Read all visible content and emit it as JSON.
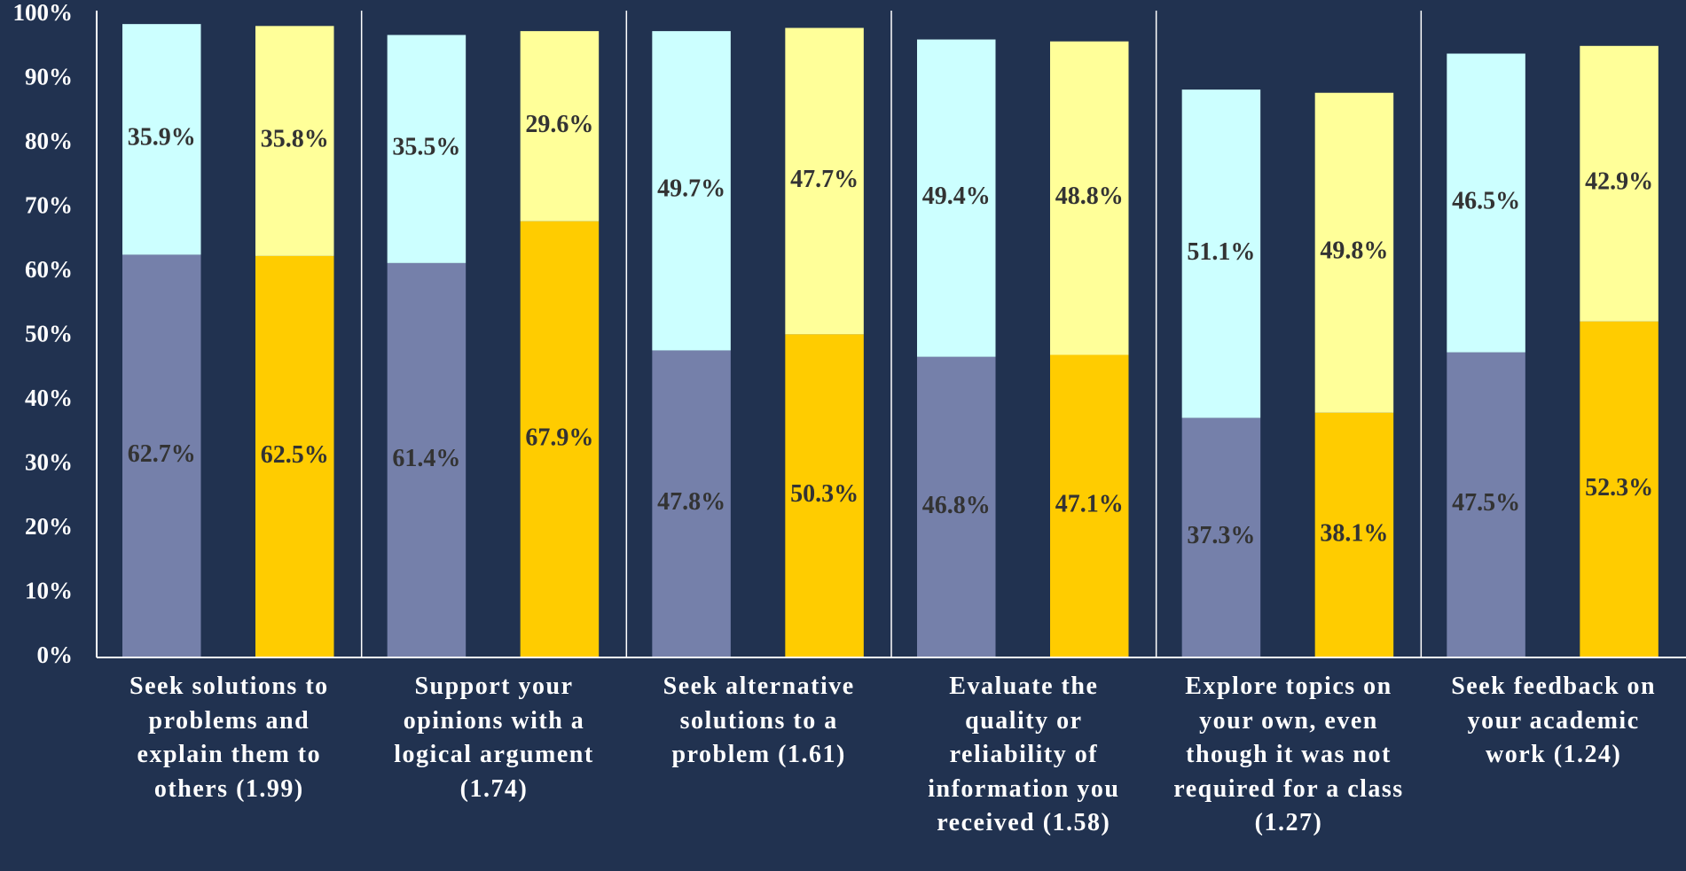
{
  "chart_data": {
    "type": "stacked_bar",
    "categories": [
      "Seek solutions to problems and explain them to others (1.99)",
      "Support your opinions with a logical argument (1.74)",
      "Seek alternative solutions to a problem (1.61)",
      "Evaluate the quality or reliability of information you received (1.58)",
      "Explore topics on your own, even though it was not required for a class (1.27)",
      "Seek feedback on your academic work (1.24)"
    ],
    "series": [
      {
        "color": "#7580aa",
        "stack": 0,
        "values": [
          62.7,
          61.4,
          47.8,
          46.8,
          37.3,
          47.5
        ],
        "value_labels": [
          "62.7%",
          "61.4%",
          "47.8%",
          "46.8%",
          "37.3%",
          "47.5%"
        ]
      },
      {
        "color": "#ccffff",
        "stack": 0,
        "values": [
          35.9,
          35.5,
          49.7,
          49.4,
          51.1,
          46.5
        ],
        "value_labels": [
          "35.9%",
          "35.5%",
          "49.7%",
          "49.4%",
          "51.1%",
          "46.5%"
        ]
      },
      {
        "color": "#ffcc00",
        "stack": 1,
        "values": [
          62.5,
          67.9,
          50.3,
          47.1,
          38.1,
          52.3
        ],
        "value_labels": [
          "62.5%",
          "67.9%",
          "50.3%",
          "47.1%",
          "38.1%",
          "52.3%"
        ]
      },
      {
        "color": "#ffff99",
        "stack": 1,
        "values": [
          35.8,
          29.6,
          47.7,
          48.8,
          49.8,
          42.9
        ],
        "value_labels": [
          "35.8%",
          "29.6%",
          "47.7%",
          "48.8%",
          "49.8%",
          "42.9%"
        ]
      }
    ],
    "ylim": [
      0,
      100
    ],
    "yticks": [
      {
        "value": 0,
        "label": "0%"
      },
      {
        "value": 10,
        "label": "10%"
      },
      {
        "value": 20,
        "label": "20%"
      },
      {
        "value": 30,
        "label": "30%"
      },
      {
        "value": 40,
        "label": "40%"
      },
      {
        "value": 50,
        "label": "50%"
      },
      {
        "value": 60,
        "label": "60%"
      },
      {
        "value": 70,
        "label": "70%"
      },
      {
        "value": 80,
        "label": "80%"
      },
      {
        "value": 90,
        "label": "90%"
      },
      {
        "value": 100,
        "label": "100%"
      }
    ],
    "grid": false
  }
}
